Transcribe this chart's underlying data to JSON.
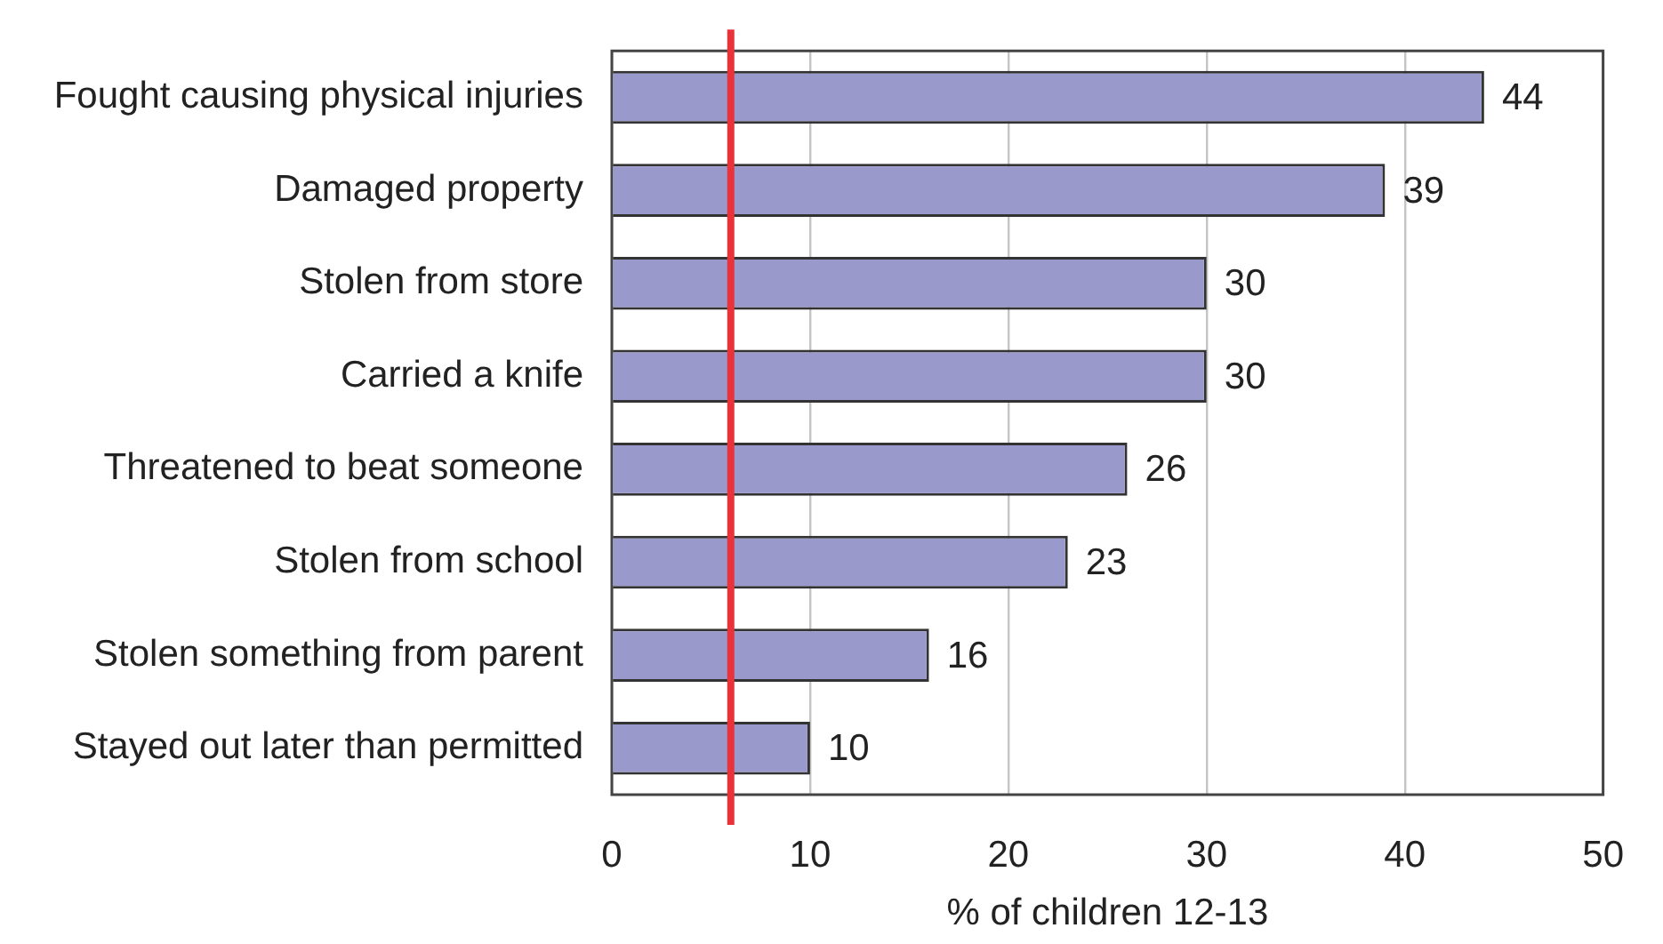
{
  "chart_data": {
    "type": "bar",
    "orientation": "horizontal",
    "xlabel": "% of children 12-13",
    "categories": [
      "Fought causing physical injuries",
      "Damaged property",
      "Stolen from store",
      "Carried a knife",
      "Threatened to beat someone",
      "Stolen from school",
      "Stolen something from parent",
      "Stayed out later than permitted"
    ],
    "values": [
      44,
      39,
      30,
      30,
      26,
      23,
      16,
      10
    ],
    "color": "#9999cc",
    "xlim": [
      0,
      50
    ],
    "xticks": [
      0,
      10,
      20,
      30,
      40,
      50
    ],
    "grid": "x",
    "data_labels": true,
    "ref_lines": [
      {
        "axis": "x",
        "value": 6,
        "color": "#e8333b"
      }
    ]
  }
}
